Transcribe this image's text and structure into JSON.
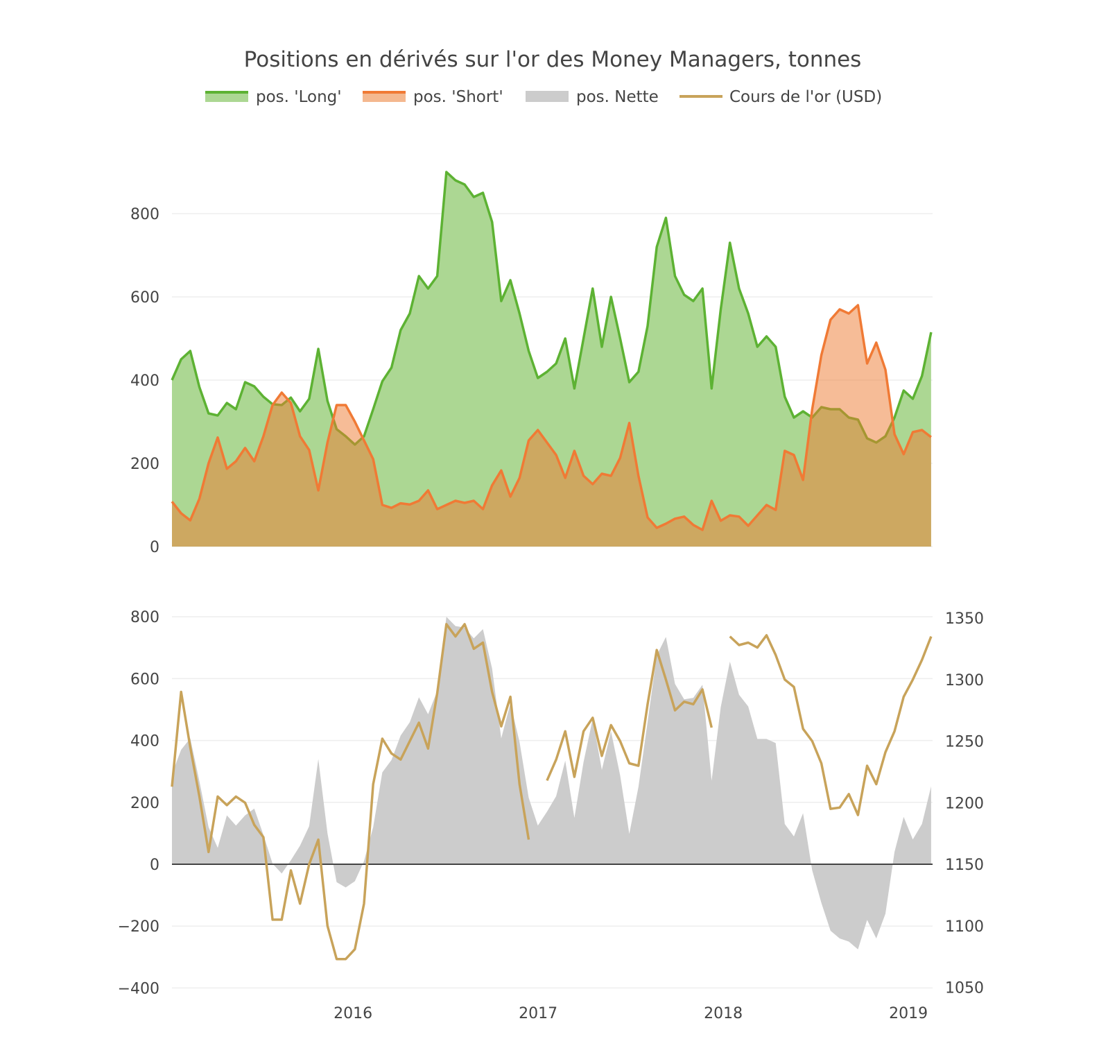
{
  "chart_data": [
    {
      "type": "area",
      "title": "Positions en dérivés sur l'or des Money Managers, tonnes",
      "legend": {
        "placement": "top-center",
        "items": [
          {
            "label": "pos. 'Long'",
            "color": "#5db233",
            "fill": "#acd793"
          },
          {
            "label": "pos. 'Short'",
            "color": "#f07a35",
            "fill": "#f4b88f"
          },
          {
            "label": "pos. Nette",
            "color": "#cccccc"
          },
          {
            "label": "Cours de l'or (USD)",
            "color": "#c8a35a"
          }
        ]
      },
      "x_start": 2015.02,
      "x_step": 0.0495,
      "x_range": [
        2015.02,
        2019.13
      ],
      "ylim": [
        0,
        980
      ],
      "yticks": [
        "0",
        "200",
        "400",
        "600",
        "800"
      ],
      "ytick_values": [
        0,
        200,
        400,
        600,
        800
      ],
      "grid": true,
      "series": [
        {
          "name": "pos. 'Long'",
          "values": [
            400,
            450,
            470,
            383,
            320,
            315,
            345,
            330,
            395,
            385,
            360,
            342,
            340,
            358,
            325,
            355,
            475,
            350,
            282,
            265,
            245,
            265,
            330,
            397,
            430,
            520,
            560,
            650,
            620,
            650,
            900,
            880,
            870,
            840,
            850,
            780,
            590,
            640,
            560,
            470,
            405,
            420,
            440,
            500,
            380,
            500,
            620,
            480,
            600,
            500,
            395,
            420,
            530,
            720,
            790,
            650,
            605,
            590,
            620,
            380,
            570,
            730,
            620,
            560,
            480,
            505,
            480,
            360,
            310,
            325,
            310,
            335,
            330,
            330,
            310,
            305,
            260,
            250,
            265,
            310,
            375,
            355,
            410,
            515
          ]
        },
        {
          "name": "pos. 'Short'",
          "values": [
            108,
            80,
            63,
            115,
            200,
            262,
            187,
            205,
            237,
            205,
            265,
            340,
            370,
            345,
            265,
            232,
            135,
            250,
            340,
            340,
            300,
            255,
            210,
            100,
            93,
            104,
            101,
            110,
            135,
            90,
            100,
            110,
            105,
            110,
            90,
            147,
            183,
            120,
            165,
            255,
            280,
            250,
            220,
            165,
            230,
            170,
            150,
            175,
            170,
            213,
            297,
            170,
            70,
            45,
            55,
            67,
            72,
            52,
            40,
            110,
            62,
            75,
            72,
            50,
            75,
            100,
            88,
            230,
            220,
            160,
            330,
            460,
            545,
            570,
            560,
            580,
            440,
            490,
            425,
            270,
            222,
            275,
            280,
            263
          ]
        }
      ]
    },
    {
      "type": "area+line",
      "x_start": 2015.02,
      "x_step": 0.0495,
      "xticks": [
        "2016",
        "2017",
        "2018",
        "2019"
      ],
      "xtick_values": [
        2016,
        2017,
        2018,
        2019
      ],
      "ylim": [
        -400,
        830
      ],
      "yticks": [
        "−400",
        "−200",
        "0",
        "200",
        "400",
        "600",
        "800"
      ],
      "ytick_values": [
        -400,
        -200,
        0,
        200,
        400,
        600,
        800
      ],
      "y2lim": [
        1050,
        1360
      ],
      "y2ticks": [
        "1050",
        "1100",
        "1150",
        "1200",
        "1250",
        "1300",
        "1350"
      ],
      "y2tick_values": [
        1050,
        1100,
        1150,
        1200,
        1250,
        1300,
        1350
      ],
      "series": [
        {
          "name": "pos. Nette",
          "axis": "y",
          "values": [
            292,
            370,
            407,
            268,
            120,
            53,
            158,
            125,
            158,
            180,
            95,
            2,
            -30,
            13,
            60,
            123,
            340,
            100,
            -58,
            -75,
            -55,
            10,
            120,
            297,
            337,
            416,
            459,
            540,
            485,
            560,
            800,
            770,
            765,
            730,
            760,
            633,
            407,
            520,
            395,
            215,
            125,
            170,
            220,
            335,
            150,
            330,
            470,
            305,
            430,
            287,
            98,
            250,
            460,
            675,
            735,
            583,
            533,
            538,
            580,
            270,
            508,
            655,
            548,
            510,
            405,
            405,
            392,
            130,
            90,
            165,
            -20,
            -125,
            -215,
            -240,
            -250,
            -275,
            -180,
            -240,
            -160,
            40,
            153,
            80,
            130,
            252
          ]
        },
        {
          "name": "Cours de l'or (USD)",
          "axis": "y2",
          "values": [
            1213,
            1290,
            1245,
            1205,
            1160,
            1205,
            1198,
            1205,
            1200,
            1182,
            1172,
            1105,
            1105,
            1145,
            1118,
            1150,
            1170,
            1100,
            1073,
            1073,
            1081,
            1118,
            1215,
            1252,
            1240,
            1235,
            1250,
            1265,
            1244,
            1289,
            1345,
            1335,
            1345,
            1325,
            1330,
            1290,
            1262,
            1286,
            1215,
            1170,
            null,
            1218,
            1235,
            1258,
            1221,
            1258,
            1269,
            1238,
            1263,
            1250,
            1232,
            1230,
            1280,
            1324,
            1300,
            1275,
            1282,
            1280,
            1292,
            1261,
            null,
            1335,
            1328,
            1330,
            1326,
            1336,
            1320,
            1300,
            1294,
            1260,
            1250,
            1232,
            1195,
            1196,
            1207,
            1190,
            1230,
            1215,
            1241,
            1258,
            1286,
            1300,
            1316,
            1335
          ]
        }
      ]
    }
  ]
}
